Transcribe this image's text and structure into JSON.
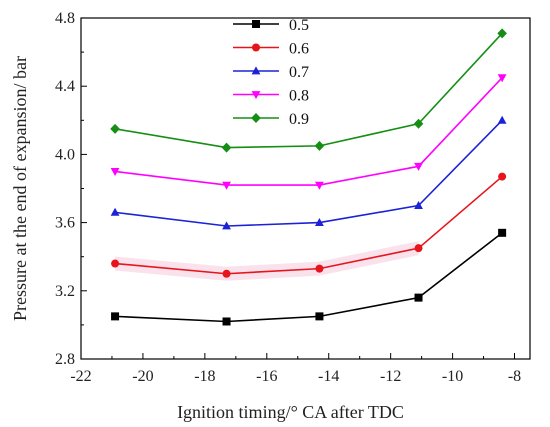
{
  "chart_data": {
    "type": "line",
    "xlabel": "Ignition timing/° CA after TDC",
    "ylabel": "Pressure at the end of expansion/ bar",
    "xlim": [
      -22,
      -7.5
    ],
    "ylim": [
      2.8,
      4.8
    ],
    "xticks": [
      -22,
      -20,
      -18,
      -16,
      -14,
      -12,
      -10,
      -8
    ],
    "yticks": [
      2.8,
      3.2,
      3.6,
      4.0,
      4.4,
      4.8
    ],
    "x": [
      -20.9,
      -17.3,
      -14.3,
      -11.1,
      -8.4
    ],
    "legend_position": "top-left",
    "grid": false,
    "series": [
      {
        "name": "0.5",
        "color": "#000000",
        "marker": "square",
        "values": [
          3.05,
          3.02,
          3.05,
          3.16,
          3.54
        ]
      },
      {
        "name": "0.6",
        "color": "#e8141b",
        "marker": "circle",
        "values": [
          3.36,
          3.3,
          3.33,
          3.45,
          3.87
        ]
      },
      {
        "name": "0.7",
        "color": "#1b22d8",
        "marker": "triangle-up",
        "values": [
          3.66,
          3.58,
          3.6,
          3.7,
          4.2
        ]
      },
      {
        "name": "0.8",
        "color": "#ff00ff",
        "marker": "triangle-down",
        "values": [
          3.9,
          3.82,
          3.82,
          3.93,
          4.45
        ]
      },
      {
        "name": "0.9",
        "color": "#148f14",
        "marker": "diamond",
        "values": [
          4.15,
          4.04,
          4.05,
          4.18,
          4.71
        ]
      }
    ]
  }
}
